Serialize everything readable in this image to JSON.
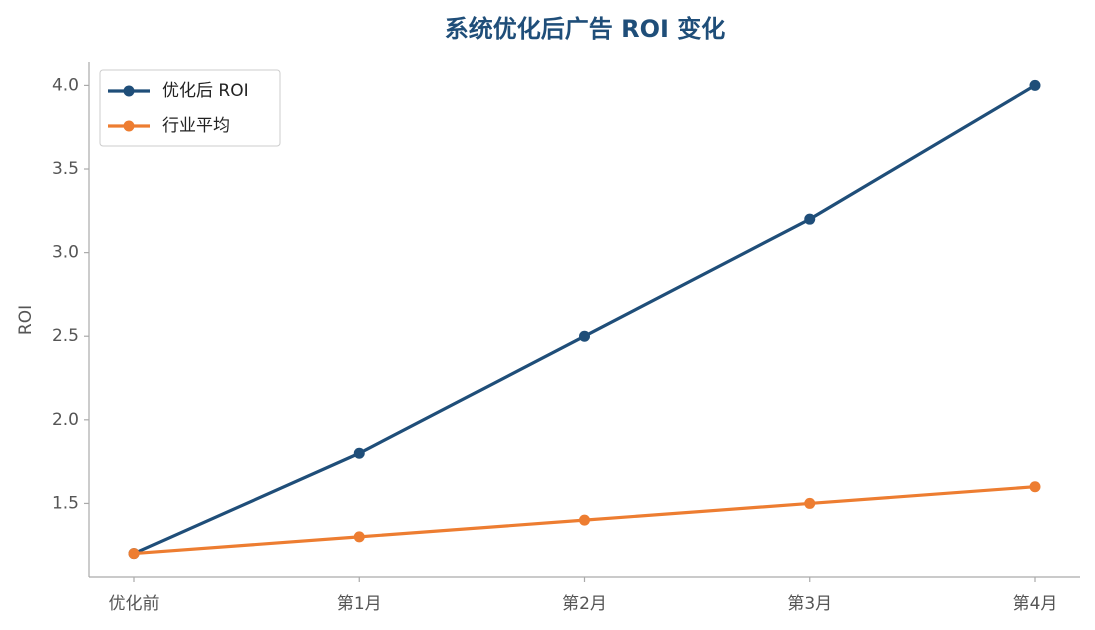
{
  "chart_data": {
    "type": "line",
    "title": "系统优化后广告 ROI 变化",
    "ylabel": "ROI",
    "categories": [
      "优化前",
      "第1月",
      "第2月",
      "第3月",
      "第4月"
    ],
    "series": [
      {
        "name": "优化后 ROI",
        "color": "#1f4e79",
        "values": [
          1.2,
          1.8,
          2.5,
          3.2,
          4.0
        ]
      },
      {
        "name": "行业平均",
        "color": "#ed7d31",
        "values": [
          1.2,
          1.3,
          1.4,
          1.5,
          1.6
        ]
      }
    ],
    "ylim": [
      1.06,
      4.14
    ],
    "yticks": [
      {
        "value": 1.5,
        "label": "1.5"
      },
      {
        "value": 2,
        "label": "2.0"
      },
      {
        "value": 2.5,
        "label": "2.5"
      },
      {
        "value": 3,
        "label": "3.0"
      },
      {
        "value": 3.5,
        "label": "3.5"
      },
      {
        "value": 4,
        "label": "4.0"
      }
    ],
    "legend": "upper left"
  }
}
